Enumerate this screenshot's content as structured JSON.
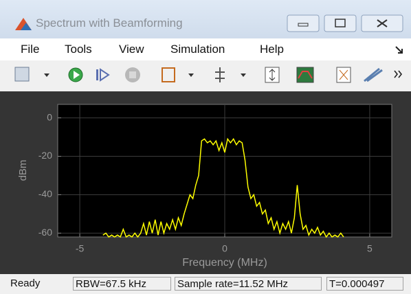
{
  "window": {
    "title": "Spectrum with Beamforming"
  },
  "menu": [
    "File",
    "Tools",
    "View",
    "Simulation",
    "Help"
  ],
  "status": [
    "Ready",
    "RBW=67.5 kHz",
    "Sample rate=11.52 MHz",
    "T=0.000497"
  ],
  "chart_data": {
    "type": "line",
    "xlabel": "Frequency (MHz)",
    "ylabel": "dBm",
    "x": [
      -4.2,
      -4.1,
      -4.0,
      -3.9,
      -3.8,
      -3.7,
      -3.6,
      -3.5,
      -3.4,
      -3.3,
      -3.2,
      -3.1,
      -3.0,
      -2.9,
      -2.8,
      -2.7,
      -2.6,
      -2.5,
      -2.4,
      -2.3,
      -2.2,
      -2.1,
      -2.0,
      -1.9,
      -1.8,
      -1.7,
      -1.6,
      -1.5,
      -1.4,
      -1.3,
      -1.2,
      -1.1,
      -1.0,
      -0.9,
      -0.8,
      -0.7,
      -0.6,
      -0.5,
      -0.4,
      -0.3,
      -0.2,
      -0.1,
      0.0,
      0.1,
      0.2,
      0.3,
      0.4,
      0.5,
      0.6,
      0.7,
      0.8,
      0.9,
      1.0,
      1.1,
      1.2,
      1.3,
      1.4,
      1.5,
      1.6,
      1.7,
      1.8,
      1.9,
      2.0,
      2.1,
      2.2,
      2.3,
      2.4,
      2.5,
      2.6,
      2.7,
      2.8,
      2.9,
      3.0,
      3.1,
      3.2,
      3.3,
      3.4,
      3.5,
      3.6,
      3.7,
      3.8,
      3.9,
      4.0,
      4.1
    ],
    "values": [
      -61,
      -60,
      -62,
      -61,
      -62,
      -61,
      -62,
      -58,
      -62,
      -61,
      -62,
      -60,
      -62,
      -60,
      -55,
      -61,
      -54,
      -60,
      -53,
      -61,
      -54,
      -60,
      -55,
      -58,
      -53,
      -58,
      -52,
      -56,
      -50,
      -45,
      -40,
      -42,
      -35,
      -30,
      -12,
      -11,
      -13,
      -12,
      -14,
      -12,
      -17,
      -13,
      -18,
      -11,
      -13,
      -11,
      -14,
      -12,
      -13,
      -22,
      -36,
      -42,
      -40,
      -46,
      -44,
      -50,
      -48,
      -55,
      -52,
      -58,
      -54,
      -60,
      -55,
      -58,
      -54,
      -60,
      -52,
      -35,
      -50,
      -58,
      -56,
      -61,
      -58,
      -60,
      -57,
      -61,
      -59,
      -62,
      -60,
      -62,
      -61,
      -62,
      -60,
      -62
    ],
    "color": "#ffff00",
    "xlim": [
      -5.76,
      5.76
    ],
    "xticks": [
      -5,
      0,
      5
    ],
    "ylim": [
      -62,
      7
    ],
    "yticks": [
      0,
      -20,
      -40,
      -60
    ],
    "grid": true
  }
}
